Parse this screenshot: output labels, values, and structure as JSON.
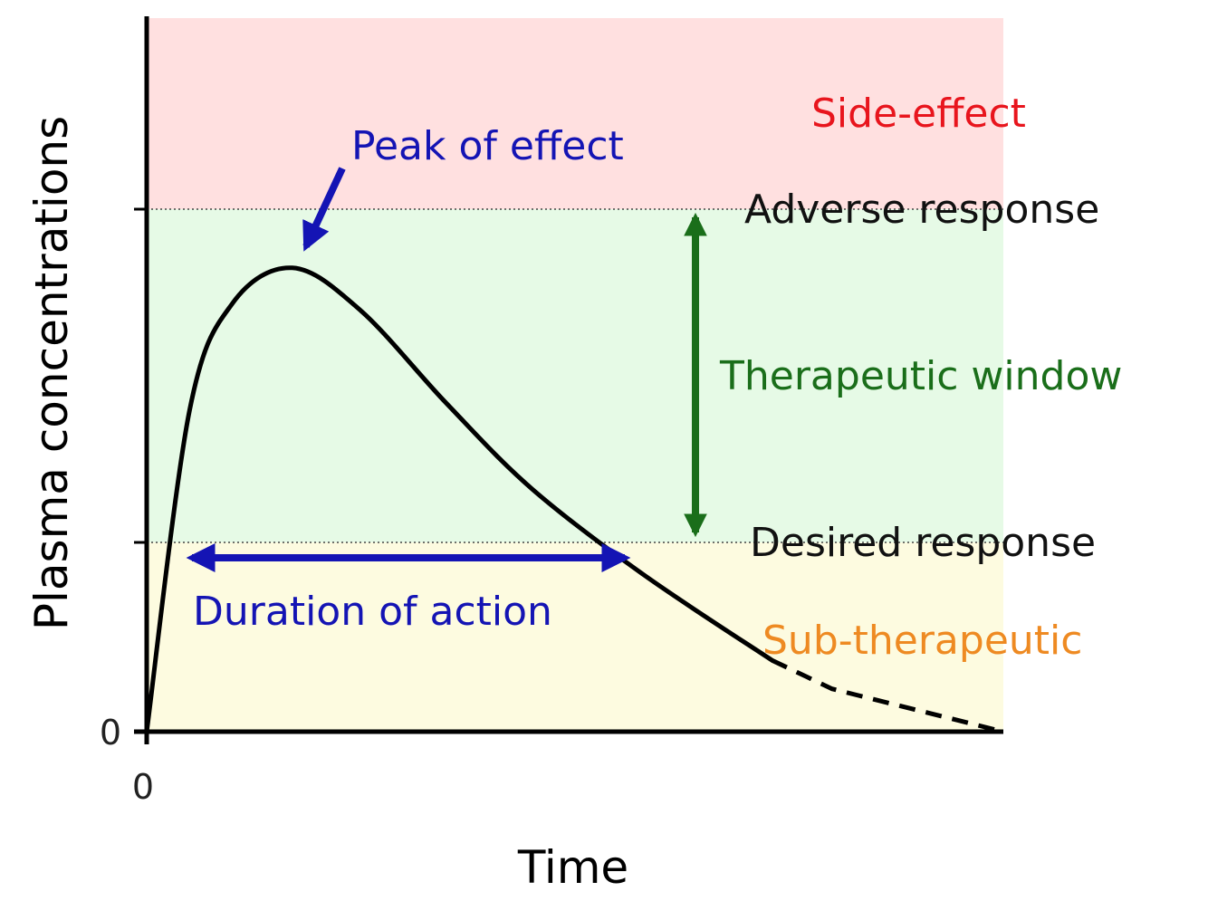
{
  "chart_data": {
    "type": "line",
    "xlabel": "Time",
    "ylabel": "Plasma concentrations",
    "x_tick_labels": [
      "0"
    ],
    "y_tick_labels": [
      "0"
    ],
    "grid": false,
    "zones": [
      {
        "name": "Side-effect",
        "color": "#ffe0e0"
      },
      {
        "name": "Therapeutic window",
        "color": "#e6fae6"
      },
      {
        "name": "Sub-therapeutic",
        "color": "#fdfbe0"
      }
    ],
    "thresholds": [
      {
        "label": "Adverse response",
        "level": 0.73
      },
      {
        "label": "Desired response",
        "level": 0.26
      }
    ],
    "curve": {
      "x": [
        0,
        0.05,
        0.1,
        0.17,
        0.25,
        0.35,
        0.45,
        0.58,
        0.73,
        0.8,
        1.0
      ],
      "y": [
        0,
        0.45,
        0.6,
        0.65,
        0.59,
        0.46,
        0.34,
        0.22,
        0.1,
        0.06,
        0.0
      ],
      "dashed_from_x": 0.73
    },
    "annotations": {
      "peak": "Peak of effect",
      "duration": "Duration of action",
      "window": "Therapeutic window",
      "side_effect": "Side-effect",
      "sub_therapeutic": "Sub-therapeutic",
      "adverse": "Adverse response",
      "desired": "Desired response"
    },
    "colors": {
      "side_effect": "#e8151d",
      "window": "#1a6e1a",
      "sub_therapeutic": "#ee8a22",
      "blue": "#1414b4",
      "curve": "#000000"
    }
  }
}
